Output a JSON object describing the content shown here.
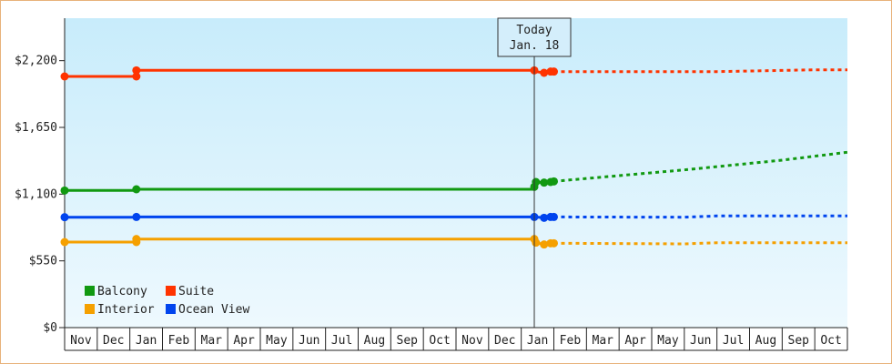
{
  "chart_data": {
    "type": "line",
    "today_marker": {
      "line1": "Today",
      "line2": "Jan. 18"
    },
    "y_ticks": [
      "$2,200",
      "$1,650",
      "$1,100",
      "$550",
      "$0"
    ],
    "y_tick_values": [
      2200,
      1650,
      1100,
      550,
      0
    ],
    "ylim": [
      0,
      2550
    ],
    "x_labels": [
      "Nov",
      "Dec",
      "Jan",
      "Feb",
      "Mar",
      "Apr",
      "May",
      "Jun",
      "Jul",
      "Aug",
      "Sep",
      "Oct",
      "Nov",
      "Dec",
      "Jan",
      "Feb",
      "Mar",
      "Apr",
      "May",
      "Jun",
      "Jul",
      "Aug",
      "Sep",
      "Oct"
    ],
    "grid": "none",
    "legend_position": "bottom-left",
    "series": [
      {
        "name": "Suite",
        "color": "#ff3300",
        "history": [
          [
            0.0,
            2070
          ],
          [
            2.2,
            2070
          ],
          [
            2.2,
            2120
          ],
          [
            14.4,
            2120
          ],
          [
            14.45,
            2110
          ],
          [
            14.7,
            2100
          ],
          [
            14.9,
            2110
          ],
          [
            15.0,
            2110
          ]
        ],
        "forecast": [
          [
            15.0,
            2110
          ],
          [
            20,
            2110
          ],
          [
            23,
            2125
          ],
          [
            24,
            2125
          ]
        ]
      },
      {
        "name": "Balcony",
        "color": "#119911",
        "history": [
          [
            0.0,
            1130
          ],
          [
            2.2,
            1130
          ],
          [
            2.2,
            1140
          ],
          [
            14.4,
            1140
          ],
          [
            14.4,
            1160
          ],
          [
            14.45,
            1200
          ],
          [
            14.7,
            1195
          ],
          [
            14.9,
            1200
          ],
          [
            15.0,
            1205
          ]
        ],
        "forecast": [
          [
            15.0,
            1205
          ],
          [
            19,
            1300
          ],
          [
            22,
            1380
          ],
          [
            24,
            1445
          ]
        ]
      },
      {
        "name": "Ocean View",
        "color": "#0044ee",
        "history": [
          [
            0.0,
            910
          ],
          [
            2.2,
            910
          ],
          [
            2.2,
            912
          ],
          [
            14.4,
            912
          ],
          [
            14.7,
            905
          ],
          [
            14.9,
            912
          ],
          [
            15.0,
            912
          ]
        ],
        "forecast": [
          [
            15.0,
            912
          ],
          [
            19,
            910
          ],
          [
            20,
            920
          ],
          [
            24,
            920
          ]
        ]
      },
      {
        "name": "Interior",
        "color": "#f5a000",
        "history": [
          [
            0.0,
            705
          ],
          [
            2.2,
            705
          ],
          [
            2.2,
            730
          ],
          [
            14.4,
            730
          ],
          [
            14.45,
            700
          ],
          [
            14.7,
            685
          ],
          [
            14.9,
            695
          ],
          [
            15.0,
            695
          ]
        ],
        "forecast": [
          [
            15.0,
            695
          ],
          [
            19,
            690
          ],
          [
            20,
            700
          ],
          [
            24,
            700
          ]
        ]
      }
    ],
    "markers": [
      {
        "series": 0,
        "points": [
          [
            0.0,
            2070
          ],
          [
            2.2,
            2070
          ],
          [
            2.2,
            2120
          ],
          [
            14.4,
            2120
          ],
          [
            14.7,
            2100
          ],
          [
            14.9,
            2110
          ],
          [
            15.0,
            2110
          ]
        ]
      },
      {
        "series": 1,
        "points": [
          [
            0.0,
            1130
          ],
          [
            2.2,
            1140
          ],
          [
            14.4,
            1160
          ],
          [
            14.45,
            1200
          ],
          [
            14.7,
            1195
          ],
          [
            14.9,
            1200
          ],
          [
            15.0,
            1205
          ]
        ]
      },
      {
        "series": 2,
        "points": [
          [
            0.0,
            910
          ],
          [
            2.2,
            912
          ],
          [
            14.4,
            912
          ],
          [
            14.7,
            905
          ],
          [
            14.9,
            912
          ],
          [
            15.0,
            912
          ]
        ]
      },
      {
        "series": 3,
        "points": [
          [
            0.0,
            705
          ],
          [
            2.2,
            705
          ],
          [
            2.2,
            730
          ],
          [
            14.4,
            730
          ],
          [
            14.45,
            700
          ],
          [
            14.7,
            685
          ],
          [
            14.9,
            695
          ],
          [
            15.0,
            695
          ]
        ]
      }
    ],
    "legend": [
      {
        "label": "Balcony",
        "color": "#119911"
      },
      {
        "label": "Suite",
        "color": "#ff3300"
      },
      {
        "label": "Interior",
        "color": "#f5a000"
      },
      {
        "label": "Ocean View",
        "color": "#0044ee"
      }
    ]
  }
}
